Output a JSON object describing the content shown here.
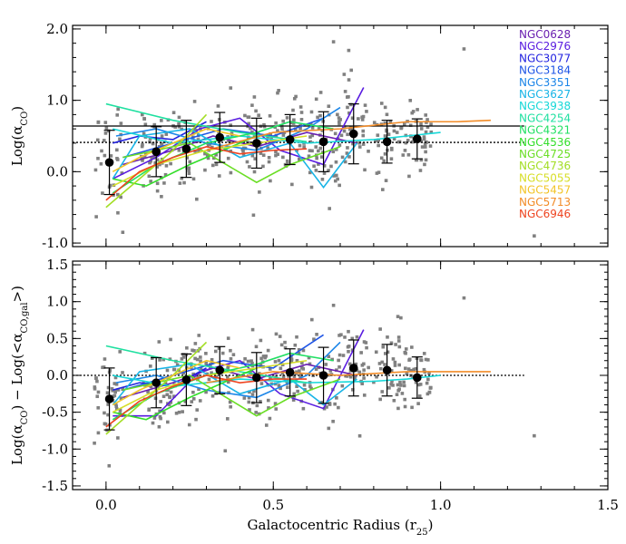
{
  "chart_data": [
    {
      "type": "scatter",
      "ylabel": "Log(α_CO)",
      "ylim": [
        -1.05,
        2.05
      ],
      "xlim": [
        -0.1,
        1.5
      ],
      "yticks": [
        "-1.0",
        "0.0",
        "1.0",
        "2.0"
      ],
      "legend_position": "top-right",
      "reference_lines": [
        {
          "style": "solid",
          "y": 0.64,
          "x_range": [
            -0.1,
            1.25
          ]
        },
        {
          "style": "dotted",
          "y": 0.41,
          "x_range": [
            -0.1,
            1.25
          ]
        }
      ],
      "binned_means": {
        "x": [
          0.01,
          0.15,
          0.24,
          0.34,
          0.45,
          0.55,
          0.65,
          0.74,
          0.84,
          0.93
        ],
        "y": [
          0.13,
          0.28,
          0.32,
          0.48,
          0.4,
          0.45,
          0.42,
          0.53,
          0.42,
          0.46
        ],
        "yerr": [
          0.45,
          0.35,
          0.4,
          0.35,
          0.35,
          0.35,
          0.42,
          0.42,
          0.3,
          0.28
        ]
      },
      "series": [
        {
          "name": "NGC0628",
          "color": "#6a1fb0",
          "x": [
            0.05,
            0.2,
            0.32,
            0.45,
            0.6,
            0.75
          ],
          "y": [
            0.1,
            0.3,
            0.5,
            0.35,
            0.55,
            0.4
          ]
        },
        {
          "name": "NGC2976",
          "color": "#5a1de0",
          "x": [
            0.02,
            0.15,
            0.28,
            0.4,
            0.52,
            0.65,
            0.77
          ],
          "y": [
            -0.1,
            0.2,
            0.6,
            0.75,
            0.3,
            0.1,
            1.18
          ]
        },
        {
          "name": "NGC3077",
          "color": "#2323e0",
          "x": [
            0.02,
            0.1,
            0.2,
            0.3
          ],
          "y": [
            0.4,
            0.5,
            0.45,
            0.7
          ]
        },
        {
          "name": "NGC3184",
          "color": "#1f55e6",
          "x": [
            0.05,
            0.2,
            0.35,
            0.5,
            0.65
          ],
          "y": [
            0.2,
            0.4,
            0.6,
            0.5,
            0.75
          ]
        },
        {
          "name": "NGC3351",
          "color": "#1c86e8",
          "x": [
            0.03,
            0.15,
            0.3,
            0.45,
            0.6,
            0.7
          ],
          "y": [
            0.5,
            0.6,
            0.4,
            0.3,
            0.6,
            0.9
          ]
        },
        {
          "name": "NGC3627",
          "color": "#18b4e6",
          "x": [
            0.02,
            0.1,
            0.25,
            0.4,
            0.55,
            0.65,
            0.75
          ],
          "y": [
            -0.1,
            0.5,
            0.6,
            0.2,
            0.4,
            -0.22,
            0.4
          ]
        },
        {
          "name": "NGC3938",
          "color": "#16d8d8",
          "x": [
            0.02,
            0.2,
            0.4,
            0.6,
            0.8,
            0.9,
            1.0
          ],
          "y": [
            0.6,
            0.4,
            0.5,
            0.4,
            0.45,
            0.5,
            0.55
          ]
        },
        {
          "name": "NGC4254",
          "color": "#1fe0a0",
          "x": [
            0.0,
            0.2,
            0.4,
            0.6
          ],
          "y": [
            0.95,
            0.72,
            0.55,
            0.42
          ]
        },
        {
          "name": "NGC4321",
          "color": "#21e063",
          "x": [
            0.02,
            0.15,
            0.3,
            0.45,
            0.55,
            0.68
          ],
          "y": [
            -0.3,
            0.1,
            0.4,
            0.55,
            0.7,
            0.6
          ]
        },
        {
          "name": "NGC4536",
          "color": "#33de2a",
          "x": [
            0.02,
            0.12,
            0.25,
            0.35,
            0.45
          ],
          "y": [
            -0.1,
            -0.2,
            0.1,
            0.3,
            0.5
          ]
        },
        {
          "name": "NGC4725",
          "color": "#6ade24",
          "x": [
            0.05,
            0.25,
            0.45,
            0.55,
            0.7
          ],
          "y": [
            0.2,
            0.4,
            -0.15,
            0.1,
            0.35
          ]
        },
        {
          "name": "NGC4736",
          "color": "#a3de24",
          "x": [
            0.0,
            0.1,
            0.2,
            0.3
          ],
          "y": [
            -0.5,
            -0.1,
            0.3,
            0.8
          ]
        },
        {
          "name": "NGC5055",
          "color": "#d7de27",
          "x": [
            0.02,
            0.15,
            0.3,
            0.45,
            0.6
          ],
          "y": [
            -0.2,
            0.1,
            0.3,
            0.4,
            0.5
          ]
        },
        {
          "name": "NGC5457",
          "color": "#f2c428",
          "x": [
            0.02,
            0.1,
            0.2,
            0.3,
            0.4
          ],
          "y": [
            0.0,
            0.2,
            0.4,
            0.6,
            0.5
          ]
        },
        {
          "name": "NGC5713",
          "color": "#f28c28",
          "x": [
            0.3,
            0.5,
            0.7,
            0.9,
            1.05,
            1.15
          ],
          "y": [
            0.3,
            0.55,
            0.6,
            0.7,
            0.7,
            0.72
          ]
        },
        {
          "name": "NGC6946",
          "color": "#ee4420",
          "x": [
            0.0,
            0.1,
            0.2,
            0.3,
            0.4,
            0.5,
            0.6
          ],
          "y": [
            -0.4,
            0.0,
            0.2,
            0.35,
            0.25,
            0.3,
            0.32
          ]
        }
      ]
    },
    {
      "type": "scatter",
      "ylabel": "Log(α_CO) − Log(<α_CO,gal>)",
      "xlabel": "Galactocentric Radius (r_25)",
      "ylim": [
        -1.55,
        1.55
      ],
      "xlim": [
        -0.1,
        1.5
      ],
      "xticks": [
        "0.0",
        "0.5",
        "1.0",
        "1.5"
      ],
      "yticks": [
        "-1.5",
        "-1.0",
        "-0.5",
        "0.0",
        "0.5",
        "1.0",
        "1.5"
      ],
      "reference_lines": [
        {
          "style": "dotted",
          "y": 0.0,
          "x_range": [
            -0.1,
            1.25
          ]
        }
      ],
      "binned_means": {
        "x": [
          0.01,
          0.15,
          0.24,
          0.34,
          0.45,
          0.55,
          0.65,
          0.74,
          0.84,
          0.93
        ],
        "y": [
          -0.32,
          -0.1,
          -0.06,
          0.07,
          -0.03,
          0.04,
          0.0,
          0.1,
          0.07,
          -0.03
        ],
        "yerr": [
          0.42,
          0.34,
          0.35,
          0.32,
          0.34,
          0.32,
          0.38,
          0.38,
          0.35,
          0.28
        ]
      },
      "series": [
        {
          "name": "NGC0628",
          "color": "#6a1fb0",
          "x": [
            0.05,
            0.2,
            0.32,
            0.45,
            0.6,
            0.75
          ],
          "y": [
            -0.3,
            -0.1,
            0.1,
            -0.05,
            0.15,
            0.0
          ]
        },
        {
          "name": "NGC2976",
          "color": "#5a1de0",
          "x": [
            0.02,
            0.15,
            0.28,
            0.4,
            0.52,
            0.65,
            0.77
          ],
          "y": [
            -0.55,
            -0.55,
            0.05,
            0.2,
            -0.25,
            -0.45,
            0.62
          ]
        },
        {
          "name": "NGC3077",
          "color": "#2323e0",
          "x": [
            0.02,
            0.1,
            0.2,
            0.3
          ],
          "y": [
            -0.2,
            -0.1,
            -0.15,
            0.1
          ]
        },
        {
          "name": "NGC3184",
          "color": "#1f55e6",
          "x": [
            0.05,
            0.2,
            0.35,
            0.5,
            0.65
          ],
          "y": [
            -0.2,
            0.0,
            0.2,
            0.1,
            0.55
          ]
        },
        {
          "name": "NGC3351",
          "color": "#1c86e8",
          "x": [
            0.03,
            0.15,
            0.3,
            0.45,
            0.6,
            0.7
          ],
          "y": [
            -0.1,
            0.0,
            -0.2,
            -0.3,
            0.0,
            0.45
          ]
        },
        {
          "name": "NGC3627",
          "color": "#18b4e6",
          "x": [
            0.02,
            0.1,
            0.25,
            0.4,
            0.55,
            0.65,
            0.75
          ],
          "y": [
            -0.4,
            0.05,
            0.15,
            -0.25,
            -0.05,
            -0.4,
            -0.05
          ]
        },
        {
          "name": "NGC3938",
          "color": "#16d8d8",
          "x": [
            0.02,
            0.2,
            0.4,
            0.6,
            0.8,
            0.9,
            1.0
          ],
          "y": [
            0.0,
            -0.15,
            -0.05,
            -0.1,
            -0.08,
            -0.05,
            0.0
          ]
        },
        {
          "name": "NGC4254",
          "color": "#1fe0a0",
          "x": [
            0.0,
            0.2,
            0.4,
            0.6
          ],
          "y": [
            0.4,
            0.2,
            0.05,
            -0.1
          ]
        },
        {
          "name": "NGC4321",
          "color": "#21e063",
          "x": [
            0.02,
            0.15,
            0.3,
            0.45,
            0.55,
            0.68
          ],
          "y": [
            -0.6,
            -0.25,
            0.0,
            0.15,
            0.3,
            0.2
          ]
        },
        {
          "name": "NGC4536",
          "color": "#33de2a",
          "x": [
            0.02,
            0.12,
            0.25,
            0.35,
            0.45
          ],
          "y": [
            -0.5,
            -0.6,
            -0.3,
            -0.1,
            0.1
          ]
        },
        {
          "name": "NGC4725",
          "color": "#6ade24",
          "x": [
            0.05,
            0.25,
            0.45,
            0.55,
            0.7
          ],
          "y": [
            -0.2,
            0.0,
            -0.55,
            -0.3,
            -0.05
          ]
        },
        {
          "name": "NGC4736",
          "color": "#a3de24",
          "x": [
            0.0,
            0.1,
            0.2,
            0.3
          ],
          "y": [
            -0.8,
            -0.4,
            0.0,
            0.45
          ]
        },
        {
          "name": "NGC5055",
          "color": "#d7de27",
          "x": [
            0.02,
            0.15,
            0.3,
            0.45,
            0.6
          ],
          "y": [
            -0.5,
            -0.2,
            0.0,
            0.1,
            0.2
          ]
        },
        {
          "name": "NGC5457",
          "color": "#f2c428",
          "x": [
            0.02,
            0.1,
            0.2,
            0.3,
            0.4
          ],
          "y": [
            -0.4,
            -0.2,
            0.0,
            0.2,
            0.1
          ]
        },
        {
          "name": "NGC5713",
          "color": "#f28c28",
          "x": [
            0.3,
            0.5,
            0.7,
            0.9,
            1.05,
            1.15
          ],
          "y": [
            -0.1,
            0.05,
            0.0,
            0.05,
            0.05,
            0.05
          ]
        },
        {
          "name": "NGC6946",
          "color": "#ee4420",
          "x": [
            0.0,
            0.1,
            0.2,
            0.3,
            0.4,
            0.5,
            0.6
          ],
          "y": [
            -0.7,
            -0.35,
            -0.15,
            0.0,
            -0.1,
            -0.05,
            -0.05
          ]
        }
      ]
    }
  ]
}
